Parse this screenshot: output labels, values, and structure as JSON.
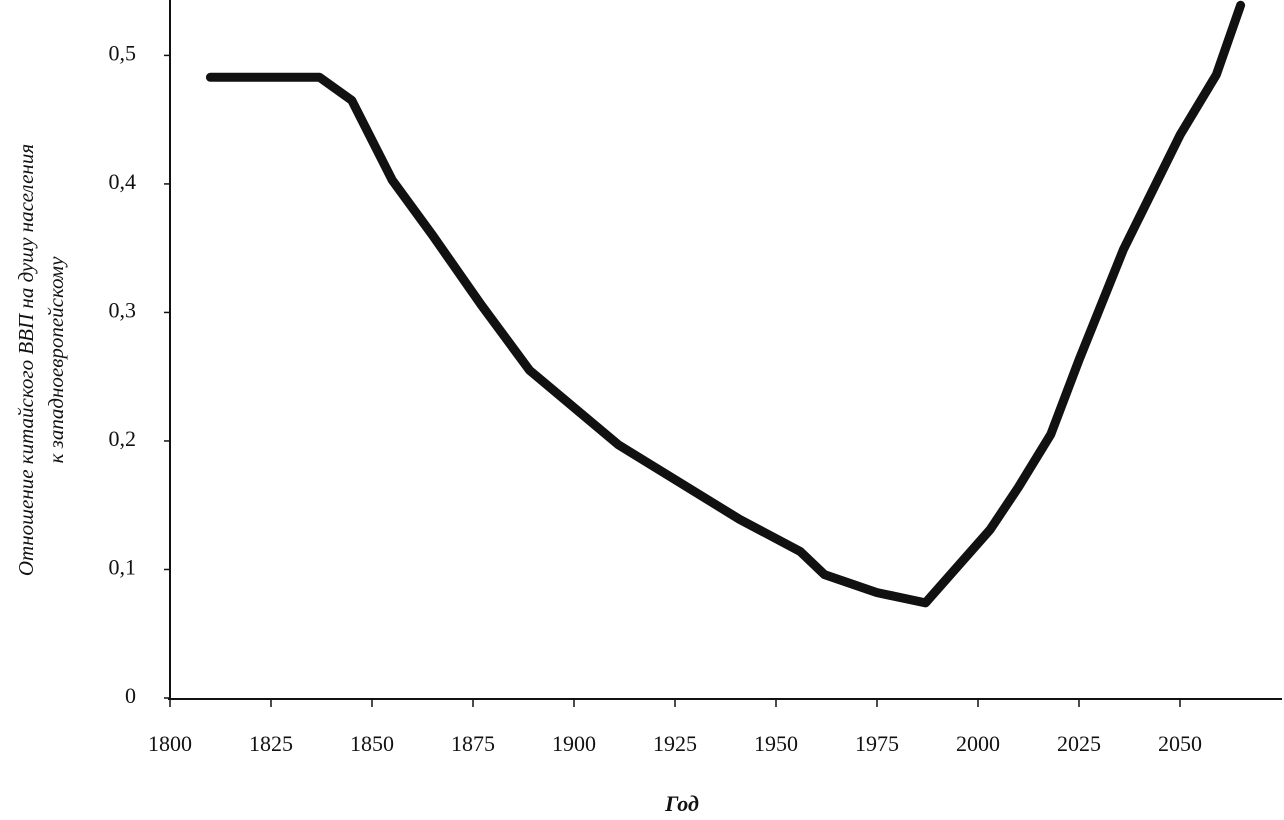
{
  "chart_data": {
    "type": "line",
    "y_label_lines": [
      "Отношение китайского ВВП на душу населения",
      "к западноевропейскому"
    ],
    "x_label": "Год",
    "x": [
      1810,
      1837,
      1845,
      1855,
      1865,
      1877,
      1889,
      1911,
      1941,
      1956,
      1962,
      1975,
      1987,
      2003,
      2010,
      2018,
      2025,
      2036,
      2050,
      2059,
      2065
    ],
    "values": [
      0.483,
      0.483,
      0.465,
      0.403,
      0.36,
      0.306,
      0.255,
      0.197,
      0.139,
      0.114,
      0.096,
      0.082,
      0.074,
      0.131,
      0.164,
      0.205,
      0.263,
      0.349,
      0.438,
      0.485,
      0.539
    ],
    "color": "#111111",
    "xlim": [
      1800,
      2075
    ],
    "xticks": [
      1800,
      1825,
      1850,
      1875,
      1900,
      1925,
      1950,
      1975,
      2000,
      2025,
      2050
    ],
    "ylim": [
      0,
      0.54
    ],
    "yticks": [
      0,
      {
        "value": 0.1,
        "label": "0,1"
      },
      {
        "value": 0.2,
        "label": "0,2"
      },
      {
        "value": 0.3,
        "label": "0,3"
      },
      {
        "value": 0.4,
        "label": "0,4"
      },
      {
        "value": 0.5,
        "label": "0,5"
      }
    ],
    "grid": false
  }
}
